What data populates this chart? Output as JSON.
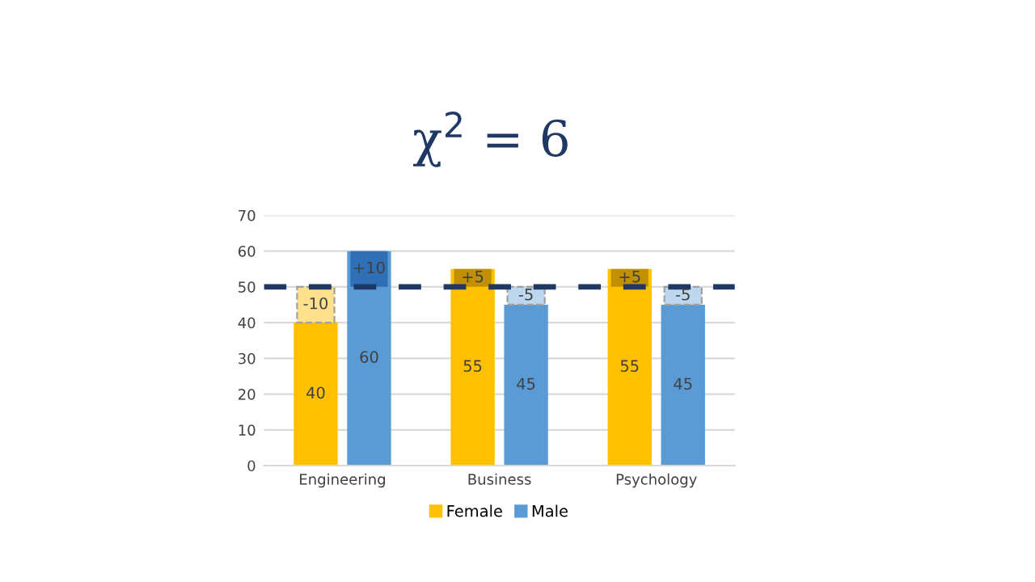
{
  "chart_data": {
    "type": "bar",
    "title": "χ$^{2}$ = 6",
    "categories": [
      "Engineering",
      "Business",
      "Psychology"
    ],
    "series": [
      {
        "name": "Female",
        "color": "#ffc000",
        "values": [
          40,
          55,
          55
        ],
        "value_labels": [
          "40",
          "55",
          "55"
        ]
      },
      {
        "name": "Male",
        "color": "#5b9bd5",
        "values": [
          60,
          45,
          45
        ],
        "value_labels": [
          "60",
          "45",
          "45"
        ]
      },
      {
        "colors": [
          "#ffe08c",
          "#c09000",
          "#c09000"
        ],
        "base": [
          50,
          50,
          50
        ],
        "values": [
          -10,
          5,
          5
        ],
        "value_labels": [
          "-10",
          "+5",
          "+5"
        ]
      },
      {
        "colors": [
          "#2e6fb5",
          "#bdd7ee",
          "#bdd7ee"
        ],
        "base": [
          50,
          50,
          50
        ],
        "values": [
          10,
          -5,
          -5
        ],
        "value_labels": [
          "+10",
          "-5",
          "-5"
        ]
      }
    ],
    "ylim": [
      0,
      70
    ],
    "yticks": [
      0,
      10,
      20,
      30,
      40,
      50,
      60,
      70
    ],
    "grid": "y",
    "legend": "bottom",
    "ref_lines": [
      {
        "axis": "y",
        "value": 50,
        "color": "#1f3864",
        "line_style": "dashed"
      }
    ]
  }
}
